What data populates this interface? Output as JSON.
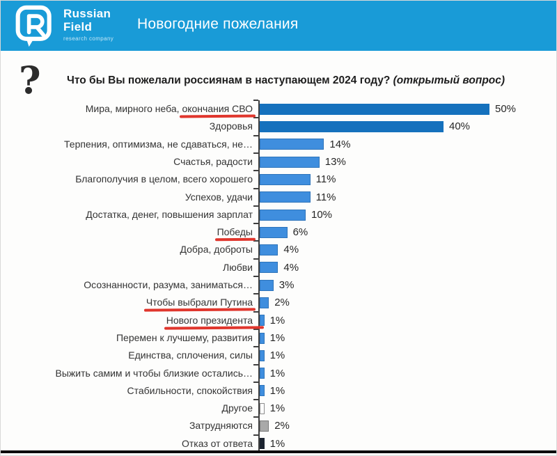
{
  "header": {
    "logo_line1": "Russian",
    "logo_line2": "Field",
    "logo_subtitle": "research company",
    "title": "Новогодние пожелания",
    "bg_color": "#199bd7"
  },
  "question": {
    "icon": "?",
    "text": "Что бы Вы пожелали россиянам в наступающем 2024 году?",
    "italic_suffix": "(открытый вопрос)"
  },
  "chart_data": {
    "type": "bar",
    "orientation": "horizontal",
    "title": "Что бы Вы пожелали россиянам в наступающем 2024 году? (открытый вопрос)",
    "unit": "%",
    "xlim": [
      0,
      55
    ],
    "grid": false,
    "legend": false,
    "categories": [
      "Мира, мирного неба, окончания СВО",
      "Здоровья",
      "Терпения, оптимизма, не сдаваться, не…",
      "Счастья, радости",
      "Благополучия в целом, всего хорошего",
      "Успехов, удачи",
      "Достатка, денег, повышения зарплат",
      "Победы",
      "Добра, доброты",
      "Любви",
      "Осознанности, разума, заниматься…",
      "Чтобы выбрали Путина",
      "Нового президента",
      "Перемен к лучшему, развития",
      "Единства, сплочения, силы",
      "Выжить самим и чтобы близкие остались…",
      "Стабильности, спокойствия",
      "Другое",
      "Затрудняются",
      "Отказ от ответа"
    ],
    "values": [
      50,
      40,
      14,
      13,
      11,
      11,
      10,
      6,
      4,
      4,
      3,
      2,
      1,
      1,
      1,
      1,
      1,
      1,
      2,
      1
    ],
    "value_labels": [
      "50%",
      "40%",
      "14%",
      "13%",
      "11%",
      "11%",
      "10%",
      "6%",
      "4%",
      "4%",
      "3%",
      "2%",
      "1%",
      "1%",
      "1%",
      "1%",
      "1%",
      "1%",
      "2%",
      "1%"
    ],
    "bar_styles": [
      "dark",
      "dark",
      "light",
      "light",
      "light",
      "light",
      "light",
      "light",
      "light",
      "light",
      "light",
      "light",
      "light",
      "light",
      "light",
      "light",
      "light",
      "white",
      "gray",
      "black"
    ],
    "red_underlines": [
      {
        "row": 0,
        "part": "окончания СВО",
        "extend": false
      },
      {
        "row": 7,
        "part": "Победы",
        "extend": false
      },
      {
        "row": 11,
        "part": "Чтобы выбрали Путина",
        "extend": false
      },
      {
        "row": 12,
        "part": "Нового президента",
        "extend": true
      }
    ],
    "colors": {
      "dark_blue": "#1571bd",
      "light_blue": "#3f8ede",
      "white_bar": "#ffffff",
      "gray_bar": "#a9a9a9",
      "black_bar": "#1c2430",
      "underline_red": "#e0362d",
      "header_blue": "#199bd7"
    }
  }
}
